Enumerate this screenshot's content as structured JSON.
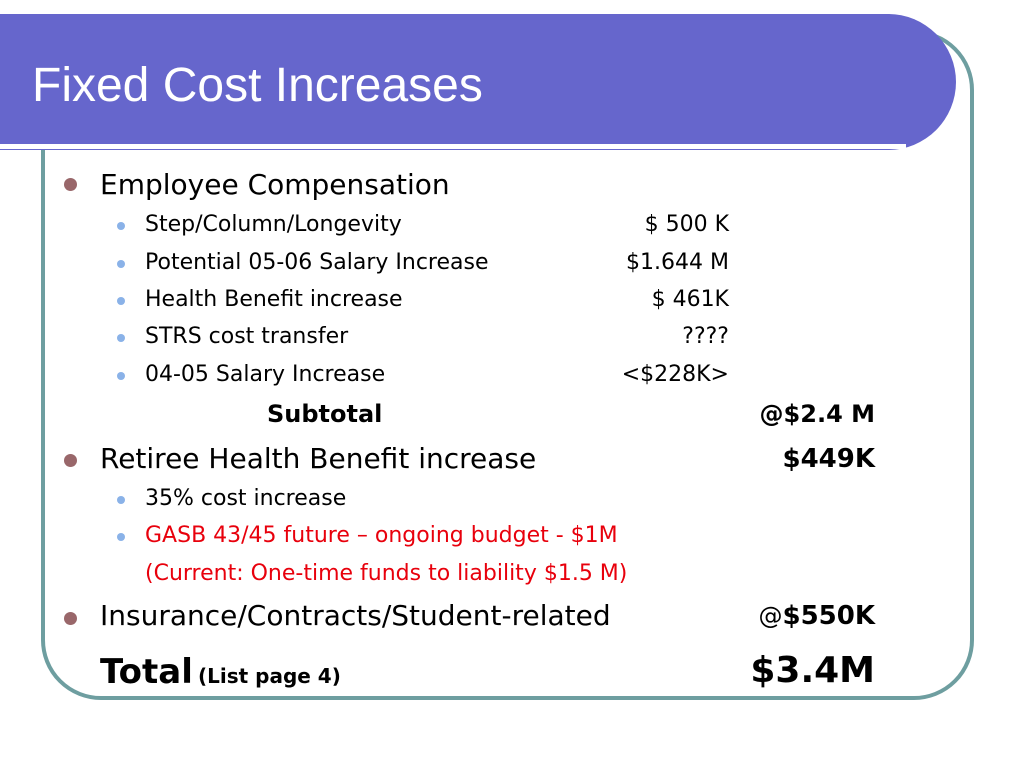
{
  "slide": {
    "title": "Fixed Cost Increases",
    "employee_comp": {
      "label": "Employee Compensation",
      "items": [
        {
          "label": "Step/Column/Longevity",
          "value": "$   500 K"
        },
        {
          "label": "Potential 05-06 Salary Increase",
          "value": "$1.644 M"
        },
        {
          "label": "Health Benefit increase",
          "value": "$   461K"
        },
        {
          "label": "STRS cost transfer",
          "value": "????"
        },
        {
          "label": "04-05 Salary Increase",
          "value": "<$228K>"
        }
      ],
      "subtotal_label": "Subtotal",
      "subtotal_value": "@$2.4 M"
    },
    "retiree": {
      "label": "Retiree Health Benefit increase",
      "value": "$449K",
      "items": [
        {
          "label": "35% cost increase"
        },
        {
          "label": "GASB 43/45 future – ongoing budget - $1M"
        }
      ],
      "note": "(Current:  One-time funds to liability $1.5 M)"
    },
    "insurance": {
      "label": "Insurance/Contracts/Student-related",
      "value_prefix": "@",
      "value": "$550K"
    },
    "total": {
      "label": "Total",
      "note": "(List page 4)",
      "value": "$3.4M"
    },
    "colors": {
      "title_bar": "#6666cc",
      "frame_border": "#6e9ea0",
      "bullet_level1": "#99676a",
      "bullet_level2": "#8ab2e8",
      "highlight_text": "#e8000c"
    }
  }
}
